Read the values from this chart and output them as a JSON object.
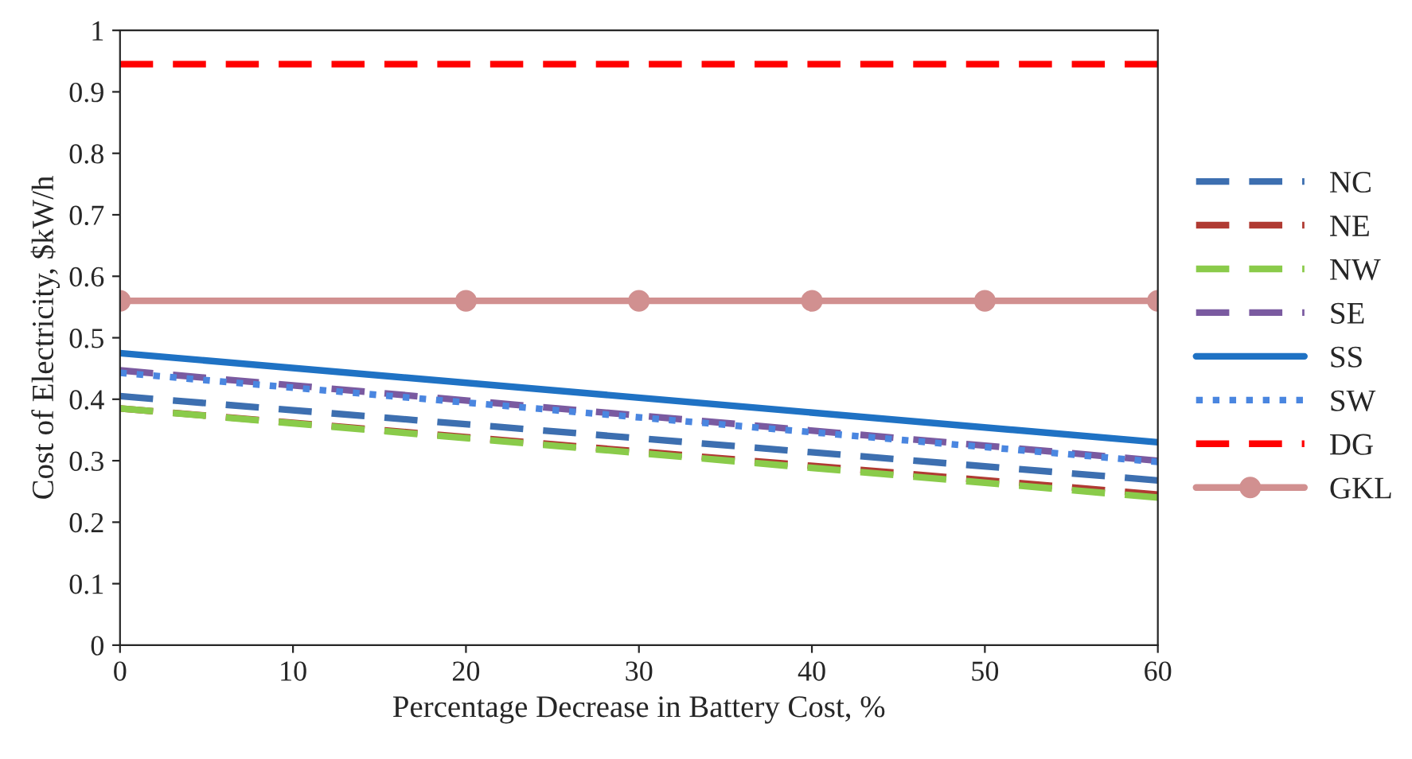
{
  "chart_data": {
    "type": "line",
    "xlabel": "Percentage Decrease in Battery Cost, %",
    "ylabel": "Cost of Electricity, $kW/h",
    "x": [
      0,
      60
    ],
    "series": [
      {
        "name": "NC",
        "color": "#3d6fb0",
        "values": [
          0.405,
          0.268
        ],
        "line_style": "dashed"
      },
      {
        "name": "NE",
        "color": "#b03a32",
        "values": [
          0.385,
          0.245
        ],
        "line_style": "dashed"
      },
      {
        "name": "NW",
        "color": "#8acb4a",
        "values": [
          0.385,
          0.24
        ],
        "line_style": "dashed"
      },
      {
        "name": "SE",
        "color": "#7a5aa0",
        "values": [
          0.447,
          0.3
        ],
        "line_style": "dashed"
      },
      {
        "name": "SS",
        "color": "#1f72c4",
        "values": [
          0.475,
          0.33
        ],
        "line_style": "solid"
      },
      {
        "name": "SW",
        "color": "#4a86e0",
        "values": [
          0.443,
          0.298
        ],
        "line_style": "dotted"
      },
      {
        "name": "DG",
        "color": "#ff0000",
        "values": [
          0.945,
          0.945
        ],
        "line_style": "dashed"
      },
      {
        "name": "GKL",
        "color": "#d19090",
        "x": [
          0,
          20,
          30,
          40,
          50,
          60
        ],
        "values": [
          0.56,
          0.56,
          0.56,
          0.56,
          0.56,
          0.56
        ],
        "line_style": "solid",
        "marker": "circle"
      }
    ],
    "xlim": [
      0,
      60
    ],
    "xticks": [
      0,
      10,
      20,
      30,
      40,
      50,
      60
    ],
    "ylim": [
      0,
      1
    ],
    "yticks": [
      0,
      0.1,
      0.2,
      0.3,
      0.4,
      0.5,
      0.6,
      0.7,
      0.8,
      0.9,
      1
    ],
    "grid": false,
    "legend": "right"
  }
}
